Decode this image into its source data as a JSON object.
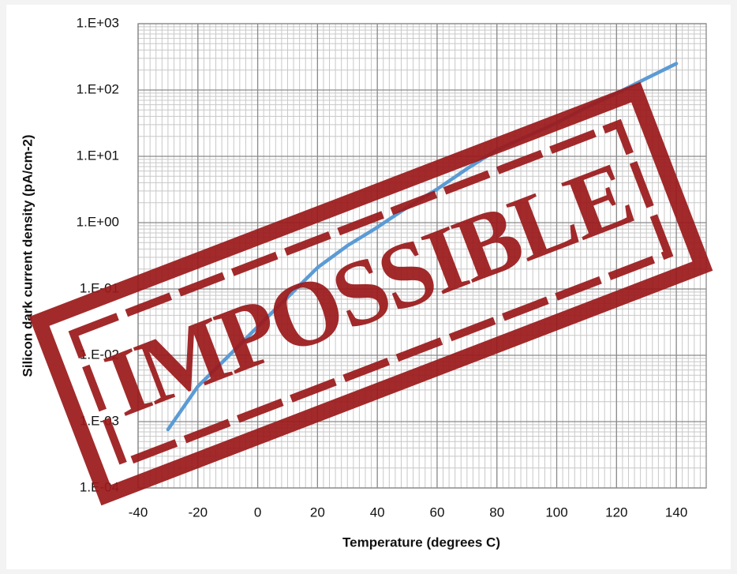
{
  "chart_data": {
    "type": "line",
    "x_label": "Temperature (degrees C)",
    "y_label": "Silicon dark current density (pA/cm-2)",
    "x": [
      -30,
      -20,
      -10,
      0,
      10,
      20,
      30,
      40,
      50,
      60,
      70,
      80,
      90,
      100,
      110,
      120,
      130,
      140
    ],
    "values": [
      0.00076,
      0.0034,
      0.0095,
      0.027,
      0.075,
      0.21,
      0.45,
      0.85,
      1.7,
      3.2,
      6.5,
      12.5,
      20,
      32,
      55,
      89,
      150,
      250
    ],
    "color": "#5b9bd5",
    "xlim": [
      -40,
      150
    ],
    "xticks": [
      -40,
      -20,
      0,
      20,
      40,
      60,
      80,
      100,
      120,
      140
    ],
    "ylim": [
      0.0001,
      1000
    ],
    "yticks": [
      {
        "value": 0.0001,
        "label": "1.E-04"
      },
      {
        "value": 0.001,
        "label": "1.E-03"
      },
      {
        "value": 0.01,
        "label": "1.E-02"
      },
      {
        "value": 0.1,
        "label": "1.E-01"
      },
      {
        "value": 1,
        "label": "1.E+00"
      },
      {
        "value": 10,
        "label": "1.E+01"
      },
      {
        "value": 100,
        "label": "1.E+02"
      },
      {
        "value": 1000,
        "label": "1.E+03"
      }
    ],
    "y_scale": "log",
    "grid": true,
    "minor_grid": true,
    "stamp": "IMPOSSIBLE",
    "stamp_color": "#9c1a1c"
  }
}
